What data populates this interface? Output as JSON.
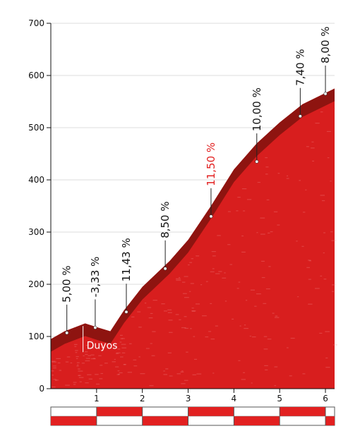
{
  "chart_data": {
    "type": "area",
    "title": "",
    "xlabel": "",
    "ylabel": "",
    "xlim": [
      0,
      6.2
    ],
    "ylim": [
      0,
      700
    ],
    "y_ticks": [
      0,
      100,
      200,
      300,
      400,
      500,
      600,
      700
    ],
    "x_ticks": [
      1,
      2,
      3,
      4,
      5,
      6
    ],
    "grid": "horizontal",
    "series": [
      {
        "x": [
          0,
          0.3,
          0.75,
          1.0,
          1.3,
          1.6,
          2.0,
          2.6,
          3.0,
          3.5,
          4.0,
          4.5,
          5.0,
          5.5,
          6.2
        ],
        "values": [
          95,
          110,
          125,
          118,
          110,
          150,
          195,
          245,
          285,
          350,
          420,
          470,
          510,
          545,
          575
        ]
      }
    ],
    "grade_markers": [
      {
        "label": "5,00 %",
        "x": 0.35,
        "y": 107,
        "highlight": false
      },
      {
        "label": "-3,33 %",
        "x": 0.97,
        "y": 117,
        "highlight": false
      },
      {
        "label": "11,43 %",
        "x": 1.65,
        "y": 147,
        "highlight": false
      },
      {
        "label": "8,50 %",
        "x": 2.5,
        "y": 230,
        "highlight": false
      },
      {
        "label": "11,50 %",
        "x": 3.5,
        "y": 330,
        "highlight": true
      },
      {
        "label": "10,00 %",
        "x": 4.5,
        "y": 435,
        "highlight": false
      },
      {
        "label": "7,40 %",
        "x": 5.45,
        "y": 522,
        "highlight": false
      },
      {
        "label": "8,00 %",
        "x": 6.0,
        "y": 565,
        "highlight": false
      }
    ],
    "place_markers": [
      {
        "label": "Duyos",
        "x": 0.75,
        "y": 90
      }
    ],
    "colors": {
      "fill": "#d81e1e",
      "band": "#8e1410",
      "highlight_text": "#e22020",
      "text": "#111111",
      "grid": "#dddddd",
      "bar_red": "#e22020"
    }
  }
}
